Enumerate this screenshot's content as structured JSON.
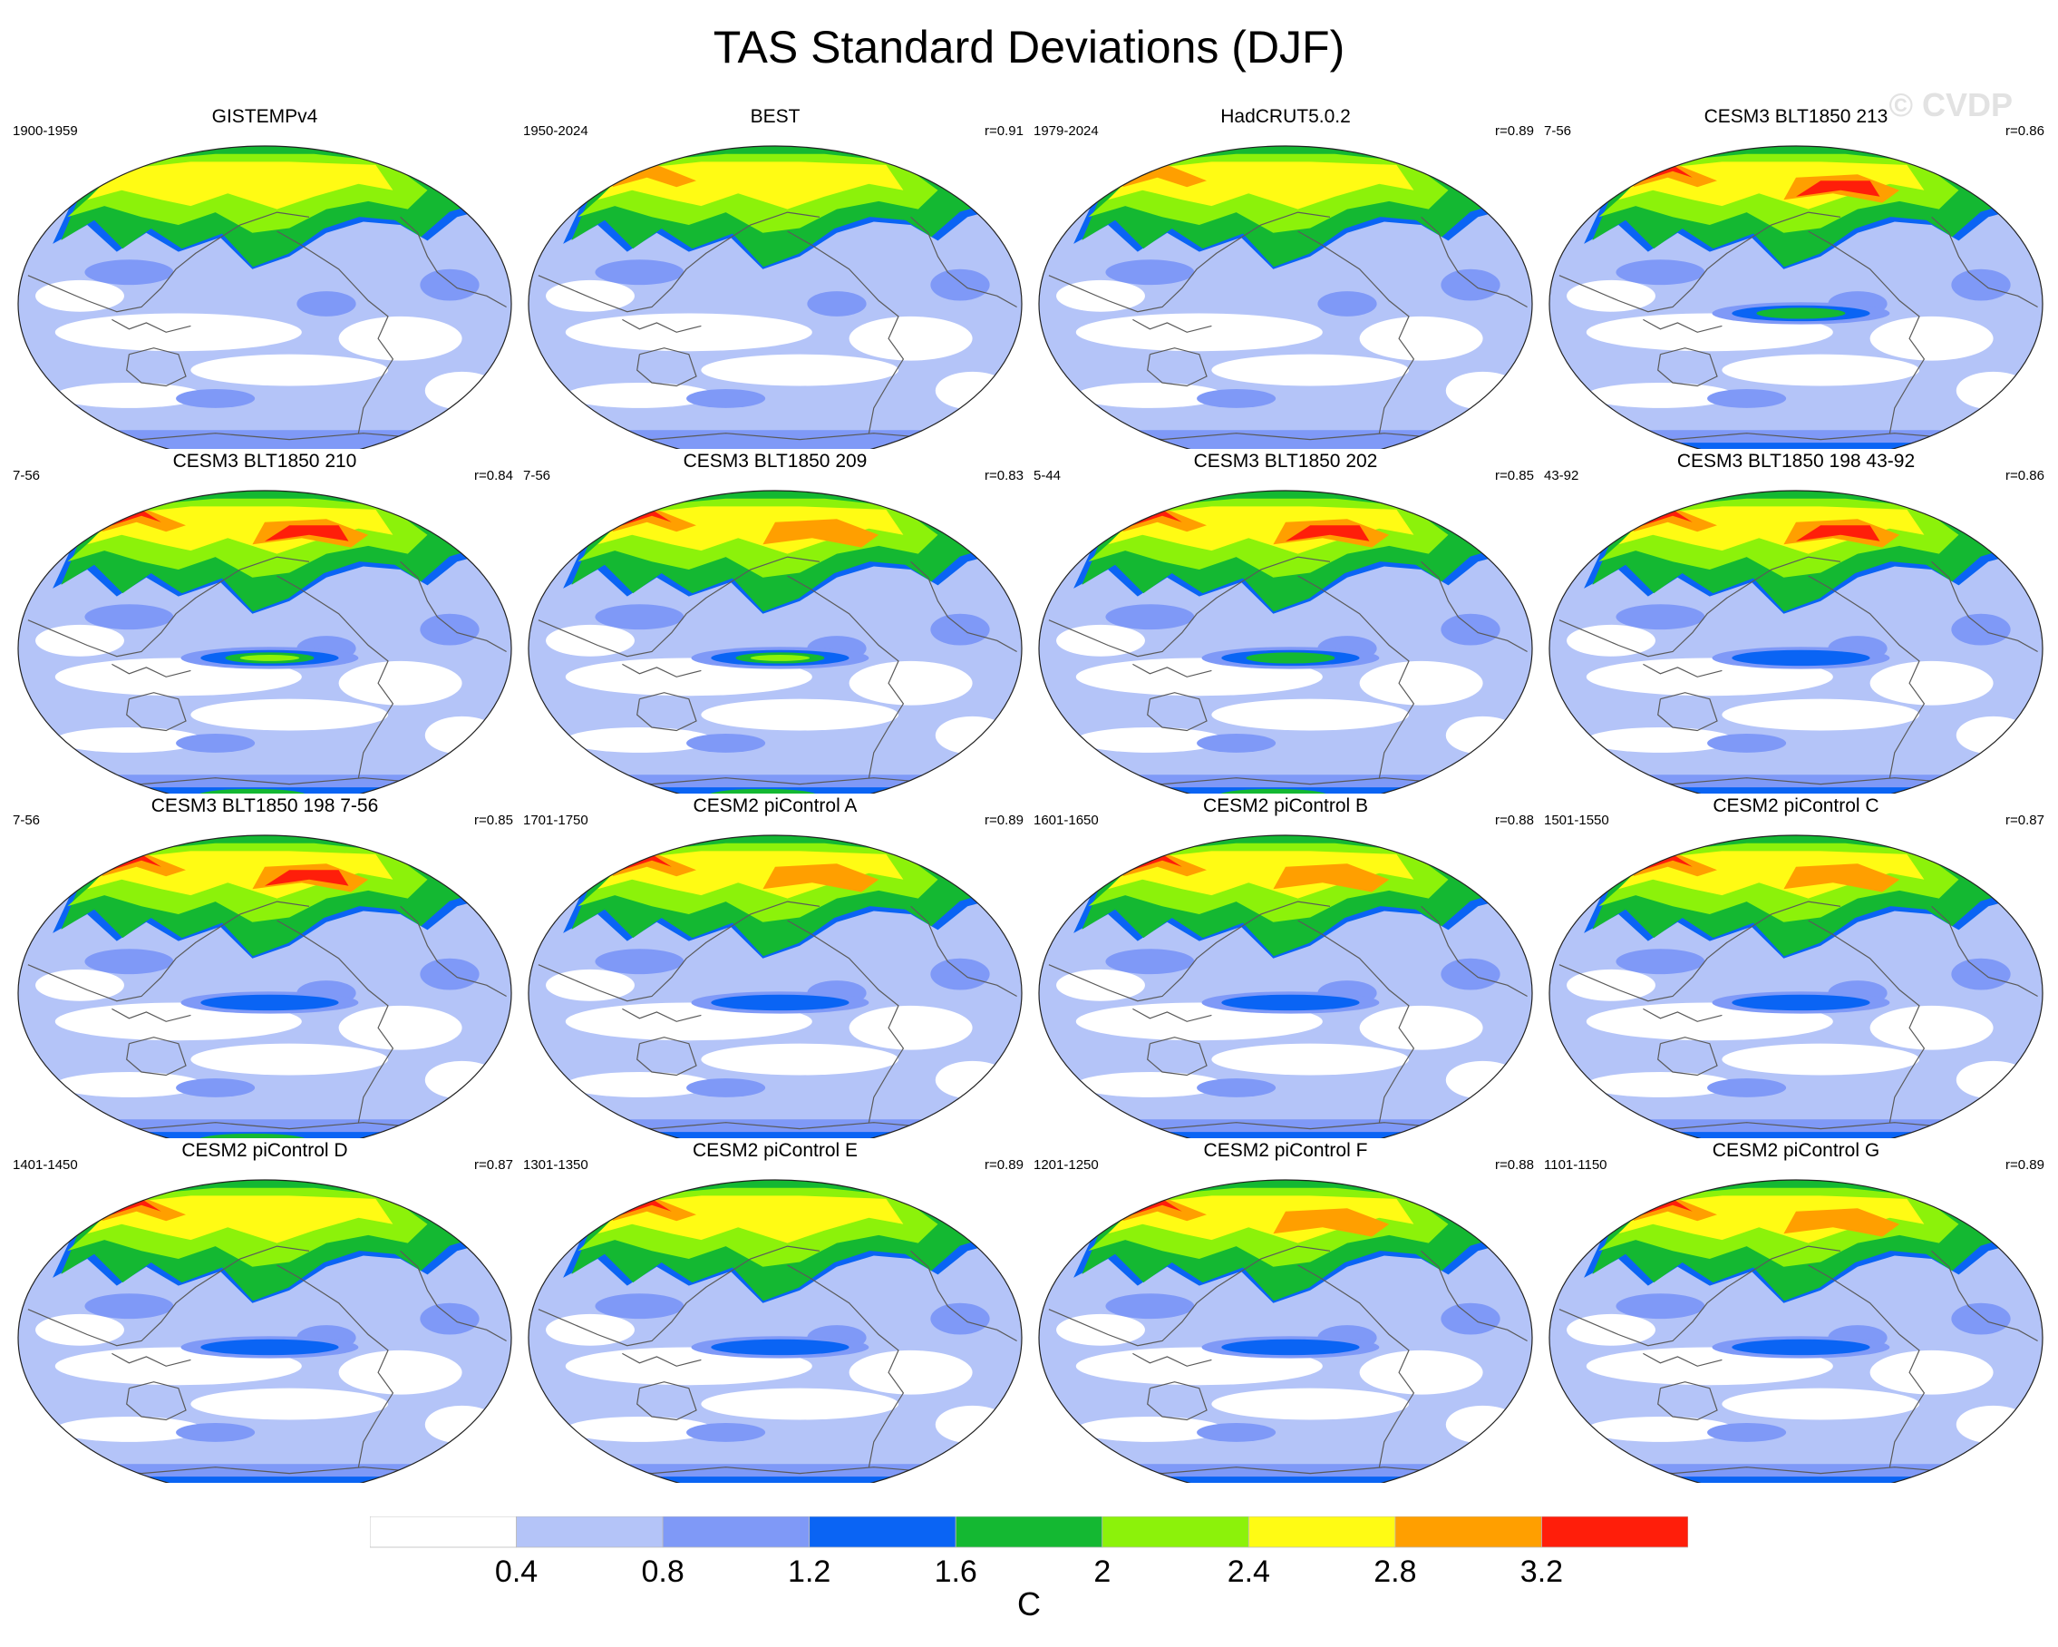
{
  "title": "TAS Standard Deviations (DJF)",
  "watermark": "© CVDP",
  "units": "C",
  "colorbar": {
    "labels": [
      "0.4",
      "0.8",
      "1.2",
      "1.6",
      "2",
      "2.4",
      "2.8",
      "3.2"
    ],
    "colors": [
      "#ffffff",
      "#b4c4f8",
      "#7f99f7",
      "#0a64f4",
      "#14b832",
      "#8cf20a",
      "#fffb14",
      "#ff9f00",
      "#ff1e0a"
    ]
  },
  "style": {
    "ocean": "#b4c4f8",
    "coast": "#5a5a5a",
    "colors": {
      "white": "#ffffff",
      "light": "#b4c4f8",
      "mid": "#7f99f7",
      "blue": "#0a64f4",
      "green": "#14b832",
      "lime": "#8cf20a",
      "yellow": "#fffb14",
      "orange": "#ff9f00",
      "red": "#ff1e0a"
    }
  },
  "panels": [
    {
      "name": "GISTEMPv4",
      "years": "1900-1959",
      "r": "",
      "intensity": 2.4,
      "enso": 0,
      "antarctic": 0.2
    },
    {
      "name": "BEST",
      "years": "1950-2024",
      "r": "r=0.91",
      "intensity": 2.9,
      "enso": 0,
      "antarctic": 0.3
    },
    {
      "name": "HadCRUT5.0.2",
      "years": "1979-2024",
      "r": "r=0.89",
      "intensity": 2.9,
      "enso": 0,
      "antarctic": 0.2
    },
    {
      "name": "CESM3 BLT1850 213",
      "years": "7-56",
      "r": "r=0.86",
      "intensity": 3.4,
      "enso": 2,
      "antarctic": 1.3
    },
    {
      "name": "CESM3 BLT1850 210",
      "years": "7-56",
      "r": "r=0.84",
      "intensity": 3.5,
      "enso": 2.6,
      "antarctic": 2.2
    },
    {
      "name": "CESM3 BLT1850 209",
      "years": "7-56",
      "r": "r=0.83",
      "intensity": 3.3,
      "enso": 2.6,
      "antarctic": 1.8
    },
    {
      "name": "CESM3 BLT1850 202",
      "years": "5-44",
      "r": "r=0.85",
      "intensity": 3.4,
      "enso": 2.3,
      "antarctic": 1.9
    },
    {
      "name": "CESM3 BLT1850 198 43-92",
      "years": "43-92",
      "r": "r=0.86",
      "intensity": 3.6,
      "enso": 1.4,
      "antarctic": 1.2
    },
    {
      "name": "CESM3 BLT1850 198 7-56",
      "years": "7-56",
      "r": "r=0.85",
      "intensity": 3.6,
      "enso": 1.4,
      "antarctic": 1.6
    },
    {
      "name": "CESM2 piControl A",
      "years": "1701-1750",
      "r": "r=0.89",
      "intensity": 3.2,
      "enso": 1.3,
      "antarctic": 0.9
    },
    {
      "name": "CESM2 piControl B",
      "years": "1601-1650",
      "r": "r=0.88",
      "intensity": 3.2,
      "enso": 1.3,
      "antarctic": 0.9
    },
    {
      "name": "CESM2 piControl C",
      "years": "1501-1550",
      "r": "r=0.87",
      "intensity": 3.2,
      "enso": 1.4,
      "antarctic": 0.9
    },
    {
      "name": "CESM2 piControl D",
      "years": "1401-1450",
      "r": "r=0.87",
      "intensity": 3.1,
      "enso": 1.3,
      "antarctic": 1.0
    },
    {
      "name": "CESM2 piControl E",
      "years": "1301-1350",
      "r": "r=0.89",
      "intensity": 3.1,
      "enso": 1.3,
      "antarctic": 1.0
    },
    {
      "name": "CESM2 piControl F",
      "years": "1201-1250",
      "r": "r=0.88",
      "intensity": 3.3,
      "enso": 1.3,
      "antarctic": 1.0
    },
    {
      "name": "CESM2 piControl G",
      "years": "1101-1150",
      "r": "r=0.89",
      "intensity": 3.2,
      "enso": 1.3,
      "antarctic": 1.0
    }
  ]
}
